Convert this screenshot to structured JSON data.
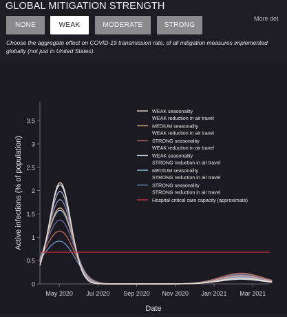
{
  "header": {
    "title": "GLOBAL MITIGATION STRENGTH",
    "more_label": "More det"
  },
  "buttons": [
    {
      "label": "NONE",
      "active": false
    },
    {
      "label": "WEAK",
      "active": true
    },
    {
      "label": "MODERATE",
      "active": false
    },
    {
      "label": "STRONG",
      "active": false
    }
  ],
  "description": "Choose the aggregate effect on COVID-19 transmission rate, of all mitigation measures implemented globally (not just in United States).",
  "colors": {
    "background": "#1f1d24",
    "button_default": "#8b8b8d",
    "button_active": "#ffffff",
    "capacity_line": "#c8323a"
  },
  "chart_data": {
    "type": "line",
    "xlabel": "Date",
    "ylabel": "Active infections (% of population)",
    "x_ticks": [
      "May 2020",
      "Jul 2020",
      "Sep 2020",
      "Nov 2020",
      "Jan 2021",
      "Mar 2021"
    ],
    "y_ticks": [
      "0",
      "0.5",
      "1",
      "1.5",
      "2",
      "2.5",
      "3",
      "3.5"
    ],
    "ylim": [
      0,
      3.9
    ],
    "grid": false,
    "legend_position": "top-right",
    "series": [
      {
        "name_line1": "WEAK seasonality",
        "name_line2": "WEAK reduction in air travel",
        "color": "#e9dcc9",
        "peak": 2.17,
        "second_peak": 0.12
      },
      {
        "name_line1": "MEDIUM seasonality",
        "name_line2": "WEAK reduction in air travel",
        "color": "#d9a27a",
        "peak": 1.62,
        "second_peak": 0.18
      },
      {
        "name_line1": "STRONG seasonality",
        "name_line2": "WEAK reduction in air travel",
        "color": "#b56a5e",
        "peak": 1.12,
        "second_peak": 0.23
      },
      {
        "name_line1": "WEAK seasonality",
        "name_line2": "STRONG reduction in air travel",
        "color": "#cfd9e6",
        "peak": 2.12,
        "second_peak": 0.1
      },
      {
        "name_line1": "MEDIUM seasonality",
        "name_line2": "STRONG reduction in air travel",
        "color": "#8ec2e0",
        "peak": 1.57,
        "second_peak": 0.16
      },
      {
        "name_line1": "STRONG seasonality",
        "name_line2": "STRONG reduction in air travel",
        "color": "#6a8fb8",
        "peak": 0.9,
        "second_peak": 0.21
      },
      {
        "name_line1": "Hospital critical care capacity (approximate)",
        "name_line2": "",
        "color": "#c8323a",
        "constant": 0.68
      }
    ],
    "extra_curves": [
      {
        "color": "#a4a8c9",
        "peak": 1.98,
        "second_peak": 0.14
      },
      {
        "color": "#8a86b3",
        "peak": 1.8,
        "second_peak": 0.15
      },
      {
        "color": "#6d6396",
        "peak": 1.36,
        "second_peak": 0.2
      }
    ]
  }
}
